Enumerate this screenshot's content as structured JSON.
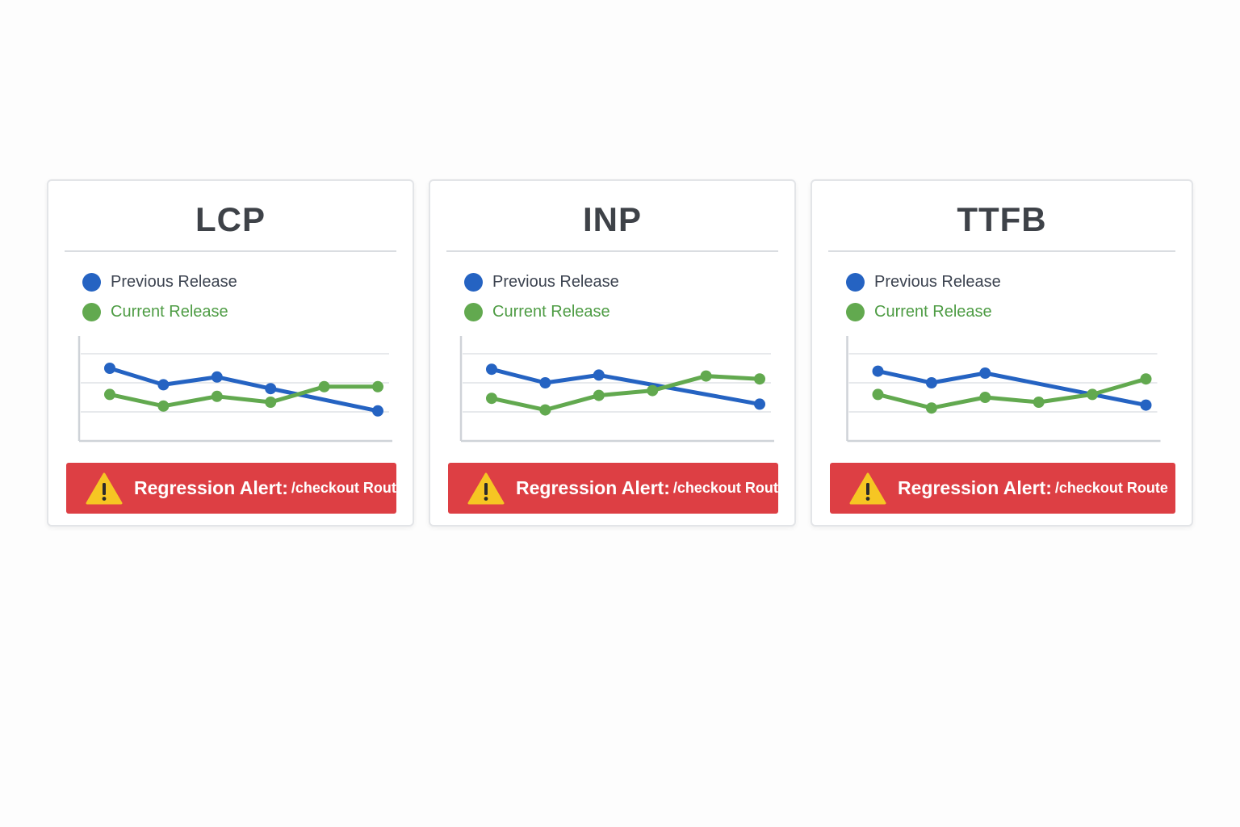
{
  "colors": {
    "previous": "#2563c2",
    "current": "#62a94f",
    "alert_bg": "#dd3f44",
    "warning_yellow": "#f6c623"
  },
  "cards": [
    {
      "title": "LCP",
      "legend": {
        "previous_label": "Previous Release",
        "current_label": "Current Release"
      },
      "alert": {
        "title": "Regression Alert:",
        "route": "/checkout Route",
        "icon": "warning-icon"
      },
      "chart_data": {
        "type": "line",
        "x": [
          1,
          2,
          3,
          4,
          5,
          6
        ],
        "ylim": [
          0,
          10
        ],
        "series": [
          {
            "name": "Previous Release",
            "color": "#2563c2",
            "points": [
              [
                1,
                7.5
              ],
              [
                2,
                5.8
              ],
              [
                3,
                6.6
              ],
              [
                4,
                5.4
              ],
              [
                6,
                3.1
              ]
            ]
          },
          {
            "name": "Current Release",
            "color": "#62a94f",
            "points": [
              [
                1,
                4.8
              ],
              [
                2,
                3.6
              ],
              [
                3,
                4.6
              ],
              [
                4,
                4.0
              ],
              [
                5,
                5.6
              ],
              [
                6,
                5.6
              ]
            ]
          }
        ]
      }
    },
    {
      "title": "INP",
      "legend": {
        "previous_label": "Previous Release",
        "current_label": "Current Release"
      },
      "alert": {
        "title": "Regression Alert:",
        "route": "/checkout Route",
        "icon": "warning-icon"
      },
      "chart_data": {
        "type": "line",
        "x": [
          1,
          2,
          3,
          4,
          5,
          6
        ],
        "ylim": [
          0,
          10
        ],
        "series": [
          {
            "name": "Previous Release",
            "color": "#2563c2",
            "points": [
              [
                1,
                7.4
              ],
              [
                2,
                6.0
              ],
              [
                3,
                6.8
              ],
              [
                6,
                3.8
              ]
            ]
          },
          {
            "name": "Current Release",
            "color": "#62a94f",
            "points": [
              [
                1,
                4.4
              ],
              [
                2,
                3.2
              ],
              [
                3,
                4.7
              ],
              [
                4,
                5.2
              ],
              [
                5,
                6.7
              ],
              [
                6,
                6.4
              ]
            ]
          }
        ]
      }
    },
    {
      "title": "TTFB",
      "legend": {
        "previous_label": "Previous Release",
        "current_label": "Current Release"
      },
      "alert": {
        "title": "Regression Alert:",
        "route": "/checkout Route",
        "icon": "warning-icon"
      },
      "chart_data": {
        "type": "line",
        "x": [
          1,
          2,
          3,
          4,
          5,
          6
        ],
        "ylim": [
          0,
          10
        ],
        "series": [
          {
            "name": "Previous Release",
            "color": "#2563c2",
            "points": [
              [
                1,
                7.2
              ],
              [
                2,
                6.0
              ],
              [
                3,
                7.0
              ],
              [
                6,
                3.7
              ]
            ]
          },
          {
            "name": "Current Release",
            "color": "#62a94f",
            "points": [
              [
                1,
                4.8
              ],
              [
                2,
                3.4
              ],
              [
                3,
                4.5
              ],
              [
                4,
                4.0
              ],
              [
                5,
                4.8
              ],
              [
                6,
                6.4
              ]
            ]
          }
        ]
      }
    }
  ]
}
